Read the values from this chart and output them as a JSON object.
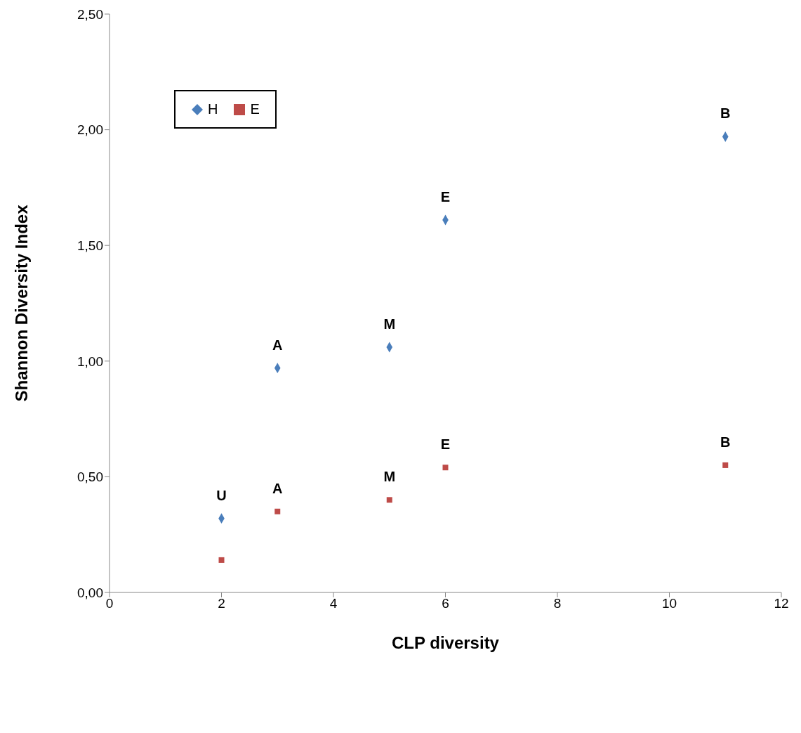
{
  "chart_data": {
    "type": "scatter",
    "xlabel": "CLP diversity",
    "ylabel": "Shannon Diversity Index",
    "xlim": [
      0,
      12
    ],
    "xticks": [
      0,
      2,
      4,
      6,
      8,
      10,
      12
    ],
    "ylim": [
      0,
      2.5
    ],
    "yticks": [
      {
        "value": 0,
        "label": "0,00"
      },
      {
        "value": 0.5,
        "label": "0,50"
      },
      {
        "value": 1,
        "label": "1,00"
      },
      {
        "value": 1.5,
        "label": "1,50"
      },
      {
        "value": 2,
        "label": "2,00"
      },
      {
        "value": 2.5,
        "label": "2,50"
      }
    ],
    "grid": false,
    "legend": "top left",
    "series": [
      {
        "name": "H",
        "color": "#4a7ebb",
        "marker": "diamond",
        "x": [
          2,
          3,
          5,
          6,
          11
        ],
        "values": [
          0.32,
          0.97,
          1.06,
          1.61,
          1.97
        ]
      },
      {
        "name": "E",
        "color": "#be4b48",
        "marker": "square",
        "x": [
          2,
          3,
          5,
          6,
          11
        ],
        "values": [
          0.14,
          0.35,
          0.4,
          0.54,
          0.55
        ]
      }
    ],
    "annotations": [
      {
        "text": "U",
        "x": 2,
        "y": 0.32
      },
      {
        "text": "A",
        "x": 3,
        "y": 0.97
      },
      {
        "text": "M",
        "x": 5,
        "y": 1.06
      },
      {
        "text": "E",
        "x": 6,
        "y": 1.61
      },
      {
        "text": "B",
        "x": 11,
        "y": 1.97
      },
      {
        "text": "A",
        "x": 3,
        "y": 0.35
      },
      {
        "text": "M",
        "x": 5,
        "y": 0.4
      },
      {
        "text": "E",
        "x": 6,
        "y": 0.54
      },
      {
        "text": "B",
        "x": 11,
        "y": 0.55
      }
    ]
  }
}
